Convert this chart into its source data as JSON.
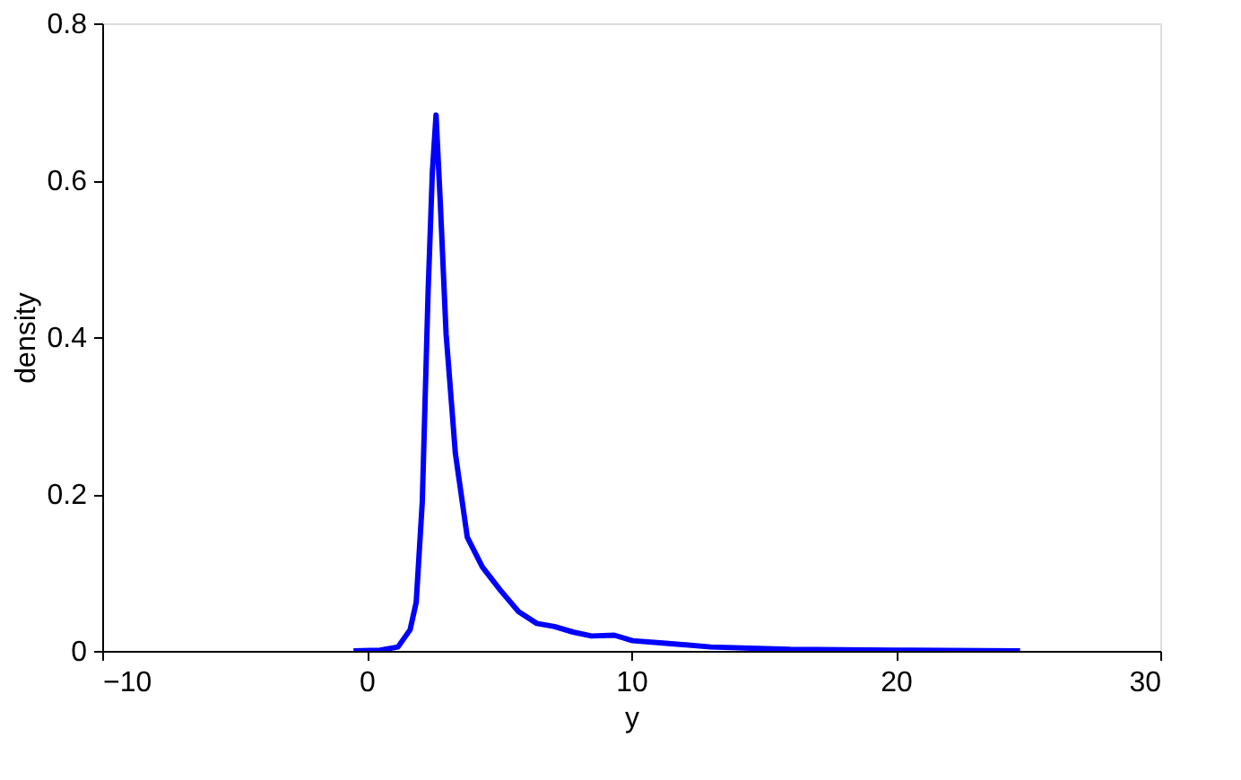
{
  "chart_data": {
    "type": "line",
    "xlabel": "y",
    "ylabel": "density",
    "x": [
      -0.5,
      0.5,
      1.18,
      1.64,
      1.87,
      2.1,
      2.32,
      2.48,
      2.62,
      2.78,
      3.0,
      3.35,
      3.8,
      4.37,
      5.06,
      5.74,
      6.43,
      7.1,
      7.8,
      8.5,
      9.36,
      10.05,
      11.2,
      13,
      16,
      20,
      24.7
    ],
    "series": [
      {
        "color": "#0000ff",
        "values": [
          0,
          0.001,
          0.005,
          0.027,
          0.062,
          0.19,
          0.458,
          0.61,
          0.683,
          0.572,
          0.404,
          0.252,
          0.145,
          0.107,
          0.077,
          0.05,
          0.035,
          0.031,
          0.024,
          0.019,
          0.02,
          0.013,
          0.01,
          0.005,
          0.002,
          0.001,
          0
        ]
      }
    ],
    "xlim": [
      -10,
      30
    ],
    "xticks": [
      {
        "value": -10,
        "label": "−10"
      },
      0,
      10,
      20,
      30
    ],
    "ylim": [
      0,
      0.8
    ],
    "yticks": [
      0,
      0.2,
      0.4,
      0.6,
      0.8
    ],
    "grid": false,
    "line_style": "solid",
    "marker": "none"
  }
}
